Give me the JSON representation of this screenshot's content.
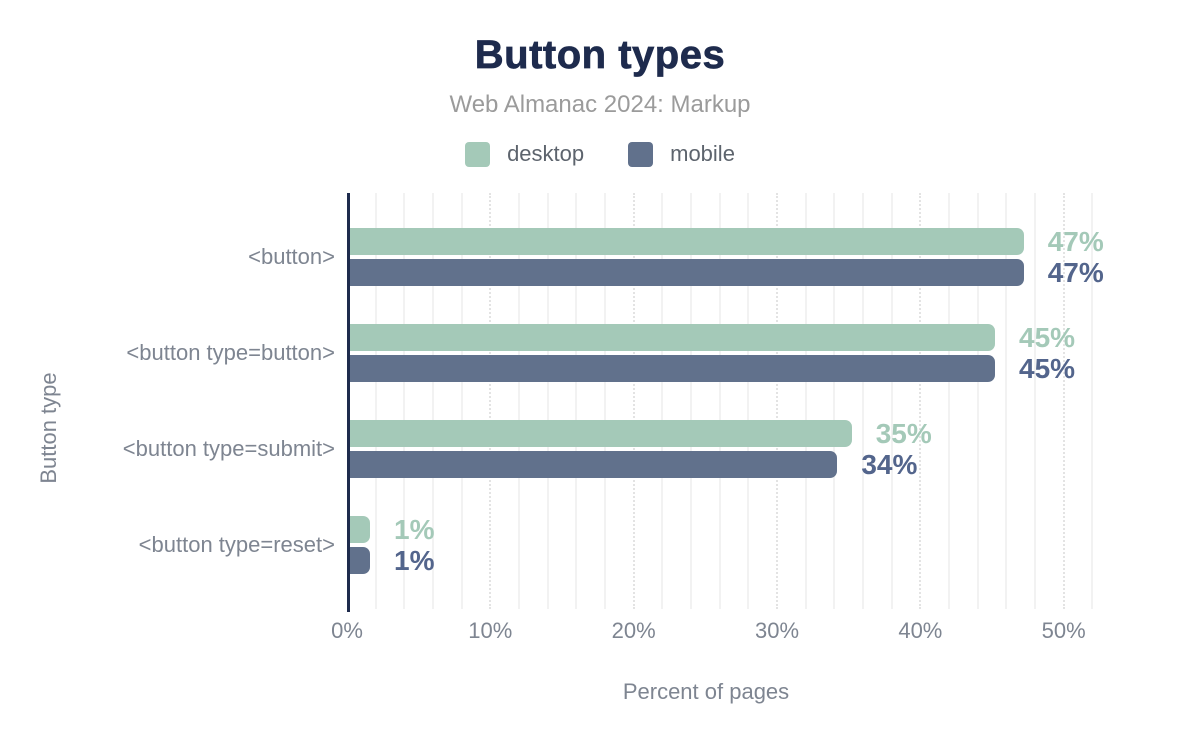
{
  "chart_data": {
    "type": "bar",
    "orientation": "horizontal",
    "title": "Button types",
    "subtitle": "Web Almanac 2024: Markup",
    "xlabel": "Percent of pages",
    "ylabel": "Button type",
    "categories": [
      "<button>",
      "<button type=button>",
      "<button type=submit>",
      "<button type=reset>"
    ],
    "series": [
      {
        "name": "desktop",
        "values": [
          47,
          45,
          35,
          1
        ],
        "value_labels": [
          "47%",
          "45%",
          "35%",
          "1%"
        ],
        "color": "#a4c9b8",
        "label_color": "#a4c9b8"
      },
      {
        "name": "mobile",
        "values": [
          47,
          45,
          34,
          1
        ],
        "value_labels": [
          "47%",
          "45%",
          "34%",
          "1%"
        ],
        "color": "#61718c",
        "label_color": "#53658c"
      }
    ],
    "xlim": [
      0,
      52
    ],
    "x_ticks": [
      {
        "value": 0,
        "label": "0%"
      },
      {
        "value": 10,
        "label": "10%"
      },
      {
        "value": 20,
        "label": "20%"
      },
      {
        "value": 30,
        "label": "30%"
      },
      {
        "value": 40,
        "label": "40%"
      },
      {
        "value": 50,
        "label": "50%"
      }
    ],
    "grid": {
      "vertical_minor_step_pct": 2,
      "vertical_major_step_pct": 10,
      "horizontal": false
    },
    "legend_position": "top",
    "colors": {
      "title": "#1e2b4d",
      "axis_line": "#1e2b4d",
      "subtitle_text": "#9b9b9b",
      "muted_text": "#7e8591",
      "legend_text": "#5d646d"
    }
  }
}
